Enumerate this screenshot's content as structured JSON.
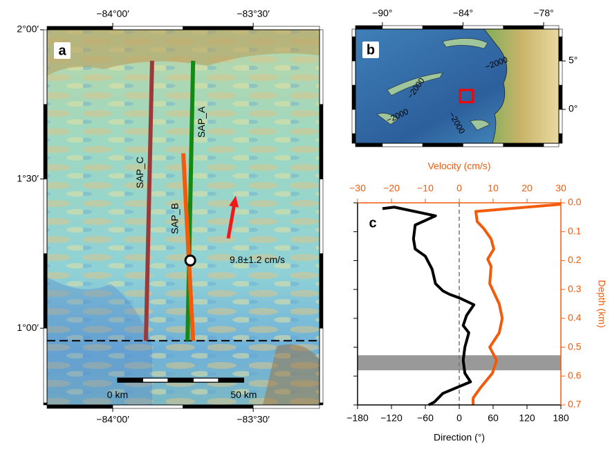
{
  "chart_data": [
    {
      "type": "map",
      "panel_label": "a",
      "xlim": [
        -84.234,
        -83.264
      ],
      "ylim": [
        0.743,
        2.0
      ],
      "xticks": [
        {
          "value": -84,
          "label": "−84°00′"
        },
        {
          "value": -83.5,
          "label": "−83°30′"
        }
      ],
      "yticks": [
        {
          "value": 2,
          "label": "2°00′"
        },
        {
          "value": 1.5,
          "label": "1°30′"
        },
        {
          "value": 1,
          "label": "1°00′"
        }
      ],
      "profiles": [
        {
          "name": "SAP_C",
          "color": "#9b3a3a",
          "lon": [
            -83.86,
            -83.882
          ],
          "lat": [
            1.896,
            0.958
          ]
        },
        {
          "name": "SAP_A",
          "color": "#138a13",
          "lon": [
            -83.714,
            -83.734
          ],
          "lat": [
            1.896,
            0.958
          ]
        },
        {
          "name": "SAP_B",
          "color": "#f25a0c",
          "lon": [
            -83.749,
            -83.714
          ],
          "lat": [
            1.586,
            0.958
          ]
        }
      ],
      "station": {
        "lon": -83.724,
        "lat": 1.227
      },
      "dashed_lat": 0.958,
      "arrow": {
        "color": "#f01818",
        "lon": [
          -83.589,
          -83.562
        ],
        "lat": [
          1.301,
          1.444
        ],
        "label": "9.8±1.2 cm/s"
      },
      "scale_bar": {
        "lon": -83.983,
        "lat": 0.826,
        "length_km": 50,
        "labels": [
          "0 km",
          "50 km"
        ]
      }
    },
    {
      "type": "map",
      "panel_label": "b",
      "xlim": [
        -92.0,
        -76.87
      ],
      "ylim": [
        -3.5,
        8.29
      ],
      "xticks": [
        {
          "value": -90,
          "label": "−90°"
        },
        {
          "value": -84,
          "label": "−84°"
        },
        {
          "value": -78,
          "label": "−78°"
        }
      ],
      "yticks": [
        {
          "value": 5,
          "label": "5°"
        },
        {
          "value": 0,
          "label": "0°"
        }
      ],
      "region_box": {
        "color": "#ff0000",
        "lon": [
          -84.234,
          -83.264
        ],
        "lat": [
          0.743,
          2.0
        ]
      },
      "contour_labels": [
        "−2000",
        "−2000",
        "−2000",
        "−2000"
      ]
    },
    {
      "type": "line",
      "panel_label": "c",
      "xlabel": "Direction (°)",
      "x2label": "Velocity (cm/s)",
      "ylabel": "Depth (km)",
      "xlim": [
        -180,
        180
      ],
      "x2lim": [
        -30,
        30
      ],
      "ylim": [
        0,
        0.7
      ],
      "y_inverted": true,
      "xticks": [
        {
          "value": -180,
          "label": "−180"
        },
        {
          "value": -120,
          "label": "−120"
        },
        {
          "value": -60,
          "label": "−60"
        },
        0,
        60,
        120,
        180
      ],
      "x2ticks": [
        {
          "value": -30,
          "label": "−30"
        },
        {
          "value": -20,
          "label": "−20"
        },
        {
          "value": -10,
          "label": "−10"
        },
        0,
        10,
        20,
        30
      ],
      "yticks": [
        {
          "value": 0,
          "label": "0.0"
        },
        0.1,
        0.2,
        0.3,
        0.4,
        0.5,
        0.6,
        0.7
      ],
      "x2color": "#f25a0c",
      "band": [
        0.528,
        0.58
      ],
      "band_color": "#999999",
      "reference_line": 0,
      "series": [
        {
          "color": "#000000",
          "axis": "x",
          "depth": [
            0.02,
            0.015,
            0.045,
            0.077,
            0.125,
            0.16,
            0.185,
            0.23,
            0.28,
            0.305,
            0.317,
            0.33,
            0.353,
            0.39,
            0.425,
            0.45,
            0.5,
            0.545,
            0.59,
            0.62,
            0.66,
            0.69,
            0.7
          ],
          "values": [
            -136,
            -115,
            -42,
            -78,
            -81,
            -78,
            -60,
            -48,
            -42,
            -29,
            -17,
            1,
            26,
            13,
            7,
            17,
            10,
            7,
            10,
            20,
            -29,
            -44,
            -54
          ]
        },
        {
          "color": "#f25a0c",
          "axis": "x2",
          "depth": [
            0.005,
            0.03,
            0.065,
            0.09,
            0.125,
            0.16,
            0.195,
            0.22,
            0.28,
            0.315,
            0.35,
            0.4,
            0.45,
            0.5,
            0.545,
            0.59,
            0.64,
            0.676,
            0.7
          ],
          "values": [
            30,
            4.9,
            5.3,
            7.3,
            9.4,
            10.2,
            8.4,
            9.4,
            9,
            10.4,
            11.8,
            12.7,
            11.8,
            9,
            11,
            9.8,
            6.3,
            4.1,
            4.1
          ]
        }
      ]
    }
  ]
}
